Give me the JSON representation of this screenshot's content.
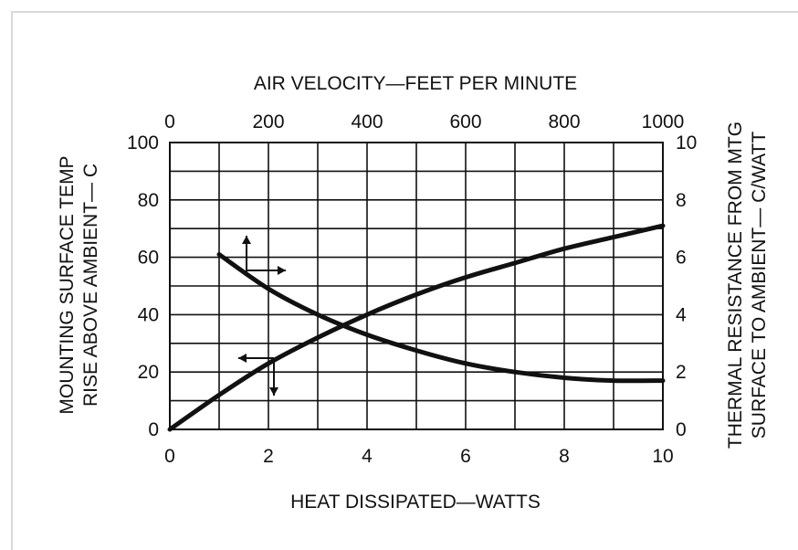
{
  "chart_data": {
    "type": "line",
    "title": "",
    "x_bottom": {
      "label": "HEAT DISSIPATED—WATTS",
      "range": [
        0,
        10
      ],
      "ticks": [
        "0",
        "2",
        "4",
        "6",
        "8",
        "10"
      ]
    },
    "x_top": {
      "label": "AIR VELOCITY—FEET PER MINUTE",
      "range": [
        0,
        1000
      ],
      "ticks": [
        "0",
        "200",
        "400",
        "600",
        "800",
        "1000"
      ]
    },
    "y_left": {
      "label_line1": "MOUNTING SURFACE TEMP",
      "label_line2": "RISE ABOVE AMBIENT— C",
      "range": [
        0,
        100
      ],
      "ticks": [
        "0",
        "20",
        "40",
        "60",
        "80",
        "100"
      ]
    },
    "y_right": {
      "label_line1": "THERMAL RESISTANCE FROM MTG",
      "label_line2": "SURFACE TO AMBIENT— C/WATT",
      "range": [
        0,
        10
      ],
      "ticks": [
        "0",
        "2",
        "4",
        "6",
        "8",
        "10"
      ]
    },
    "grid": true,
    "series": [
      {
        "axes": "bottom-left",
        "x": [
          0,
          1,
          2,
          3,
          4,
          5,
          6,
          7,
          8,
          9,
          10
        ],
        "y": [
          0,
          12,
          23,
          32,
          40,
          47,
          53,
          58,
          63,
          67,
          71
        ]
      },
      {
        "axes": "top-right",
        "x": [
          100,
          200,
          300,
          400,
          500,
          600,
          700,
          800,
          900,
          1000
        ],
        "y": [
          6.1,
          4.9,
          4.0,
          3.3,
          2.75,
          2.3,
          2.0,
          1.8,
          1.7,
          1.7
        ]
      }
    ]
  }
}
